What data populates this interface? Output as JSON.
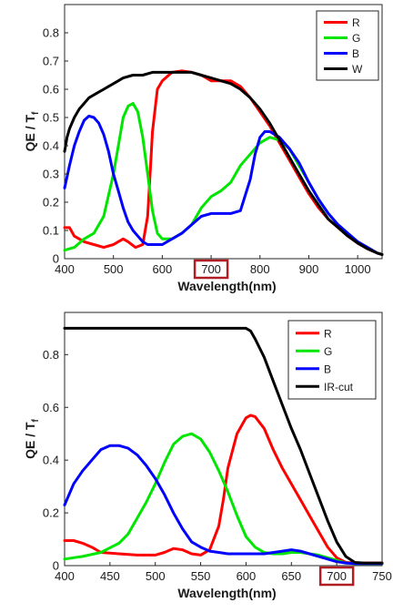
{
  "chart_data": [
    {
      "type": "line",
      "xlabel": "Wavelength(nm)",
      "ylabel": "QE / T",
      "ylabel_sub": "f",
      "xlim": [
        400,
        1050
      ],
      "ylim": [
        0,
        0.9
      ],
      "xticks": [
        400,
        500,
        600,
        700,
        800,
        900,
        1000
      ],
      "yticks": [
        0,
        0.1,
        0.2,
        0.3,
        0.4,
        0.5,
        0.6,
        0.7,
        0.8
      ],
      "xtick_labels": [
        "400",
        "500",
        "600",
        "700",
        "800",
        "900",
        "1000"
      ],
      "ytick_labels": [
        "0",
        "0.1",
        "0.2",
        "0.3",
        "0.4",
        "0.5",
        "0.6",
        "0.7",
        "0.8"
      ],
      "highlighted_tick": "700",
      "highlight_color": "#b01e23",
      "grid": false,
      "legend_position": "top-right",
      "series": [
        {
          "name": "R",
          "color": "#ff0000",
          "x": [
            400,
            410,
            420,
            440,
            460,
            480,
            500,
            520,
            530,
            545,
            560,
            570,
            575,
            580,
            590,
            600,
            620,
            640,
            660,
            680,
            700,
            720,
            740,
            760,
            780,
            800,
            820,
            840,
            860,
            880,
            900,
            920,
            940,
            960,
            980,
            1000,
            1020,
            1040,
            1050
          ],
          "y": [
            0.11,
            0.11,
            0.08,
            0.06,
            0.05,
            0.04,
            0.05,
            0.07,
            0.06,
            0.04,
            0.05,
            0.15,
            0.3,
            0.45,
            0.6,
            0.63,
            0.66,
            0.665,
            0.66,
            0.65,
            0.63,
            0.63,
            0.63,
            0.61,
            0.57,
            0.52,
            0.47,
            0.41,
            0.35,
            0.29,
            0.23,
            0.18,
            0.14,
            0.11,
            0.08,
            0.055,
            0.035,
            0.02,
            0.015
          ]
        },
        {
          "name": "G",
          "color": "#00e600",
          "x": [
            400,
            420,
            440,
            460,
            480,
            500,
            510,
            520,
            530,
            540,
            550,
            560,
            570,
            580,
            590,
            600,
            620,
            640,
            660,
            680,
            700,
            720,
            740,
            760,
            780,
            800,
            820,
            840,
            860,
            880,
            900,
            920,
            940,
            960,
            980,
            1000,
            1020,
            1040,
            1050
          ],
          "y": [
            0.03,
            0.04,
            0.07,
            0.09,
            0.15,
            0.3,
            0.4,
            0.5,
            0.54,
            0.55,
            0.52,
            0.43,
            0.3,
            0.17,
            0.09,
            0.07,
            0.07,
            0.09,
            0.12,
            0.18,
            0.22,
            0.24,
            0.27,
            0.33,
            0.37,
            0.41,
            0.43,
            0.42,
            0.39,
            0.33,
            0.27,
            0.21,
            0.16,
            0.12,
            0.09,
            0.06,
            0.04,
            0.02,
            0.015
          ]
        },
        {
          "name": "B",
          "color": "#0000ff",
          "x": [
            400,
            410,
            420,
            430,
            440,
            450,
            460,
            470,
            480,
            490,
            500,
            510,
            520,
            530,
            540,
            550,
            560,
            570,
            580,
            600,
            620,
            640,
            660,
            680,
            700,
            720,
            740,
            760,
            780,
            790,
            800,
            810,
            820,
            830,
            840,
            860,
            880,
            900,
            920,
            940,
            960,
            980,
            1000,
            1020,
            1040,
            1050
          ],
          "y": [
            0.25,
            0.33,
            0.4,
            0.45,
            0.49,
            0.505,
            0.5,
            0.48,
            0.44,
            0.38,
            0.3,
            0.24,
            0.18,
            0.13,
            0.1,
            0.08,
            0.06,
            0.05,
            0.05,
            0.05,
            0.07,
            0.09,
            0.12,
            0.15,
            0.16,
            0.16,
            0.16,
            0.17,
            0.28,
            0.37,
            0.43,
            0.45,
            0.45,
            0.44,
            0.43,
            0.39,
            0.34,
            0.27,
            0.21,
            0.16,
            0.12,
            0.09,
            0.06,
            0.04,
            0.02,
            0.015
          ]
        },
        {
          "name": "W",
          "color": "#000000",
          "x": [
            400,
            405,
            410,
            420,
            430,
            440,
            450,
            460,
            470,
            480,
            490,
            500,
            520,
            540,
            560,
            580,
            600,
            620,
            640,
            660,
            680,
            700,
            720,
            740,
            760,
            780,
            800,
            820,
            840,
            860,
            880,
            900,
            920,
            940,
            960,
            980,
            1000,
            1020,
            1040,
            1050
          ],
          "y": [
            0.38,
            0.43,
            0.46,
            0.5,
            0.53,
            0.55,
            0.57,
            0.58,
            0.59,
            0.6,
            0.61,
            0.62,
            0.64,
            0.65,
            0.65,
            0.66,
            0.66,
            0.66,
            0.66,
            0.66,
            0.65,
            0.64,
            0.63,
            0.62,
            0.6,
            0.57,
            0.53,
            0.48,
            0.42,
            0.36,
            0.3,
            0.24,
            0.19,
            0.14,
            0.11,
            0.08,
            0.055,
            0.035,
            0.02,
            0.015
          ]
        }
      ]
    },
    {
      "type": "line",
      "xlabel": "Wavelength(nm)",
      "ylabel": "QE / T",
      "ylabel_sub": "f",
      "xlim": [
        400,
        750
      ],
      "ylim": [
        0,
        0.96
      ],
      "xticks": [
        400,
        450,
        500,
        550,
        600,
        650,
        700,
        750
      ],
      "yticks": [
        0,
        0.2,
        0.4,
        0.6,
        0.8
      ],
      "xtick_labels": [
        "400",
        "450",
        "500",
        "550",
        "600",
        "650",
        "700",
        "750"
      ],
      "ytick_labels": [
        "0",
        "0.2",
        "0.4",
        "0.6",
        "0.8"
      ],
      "highlighted_tick": "700",
      "highlight_color": "#b01e23",
      "grid": false,
      "legend_position": "top-right",
      "series": [
        {
          "name": "R",
          "color": "#ff0000",
          "x": [
            400,
            410,
            420,
            430,
            440,
            460,
            480,
            500,
            510,
            520,
            530,
            540,
            550,
            560,
            570,
            575,
            580,
            590,
            600,
            605,
            610,
            620,
            630,
            640,
            650,
            660,
            670,
            680,
            690,
            700,
            710,
            720,
            730,
            740,
            750
          ],
          "y": [
            0.095,
            0.095,
            0.085,
            0.07,
            0.05,
            0.045,
            0.04,
            0.04,
            0.05,
            0.065,
            0.06,
            0.045,
            0.04,
            0.06,
            0.15,
            0.25,
            0.37,
            0.5,
            0.56,
            0.57,
            0.565,
            0.52,
            0.44,
            0.37,
            0.31,
            0.25,
            0.19,
            0.13,
            0.07,
            0.03,
            0.012,
            0.01,
            0.01,
            0.01,
            0.01
          ]
        },
        {
          "name": "G",
          "color": "#00e600",
          "x": [
            400,
            410,
            420,
            440,
            460,
            470,
            480,
            490,
            500,
            510,
            520,
            530,
            540,
            550,
            560,
            570,
            580,
            590,
            600,
            610,
            620,
            630,
            640,
            650,
            660,
            670,
            680,
            690,
            700,
            710,
            720,
            730,
            740,
            750
          ],
          "y": [
            0.025,
            0.03,
            0.035,
            0.05,
            0.085,
            0.12,
            0.18,
            0.24,
            0.31,
            0.39,
            0.46,
            0.49,
            0.5,
            0.48,
            0.43,
            0.36,
            0.28,
            0.19,
            0.11,
            0.07,
            0.05,
            0.045,
            0.045,
            0.05,
            0.05,
            0.045,
            0.04,
            0.03,
            0.02,
            0.01,
            0.008,
            0.008,
            0.008,
            0.008
          ]
        },
        {
          "name": "B",
          "color": "#0000ff",
          "x": [
            400,
            410,
            420,
            430,
            440,
            450,
            460,
            470,
            480,
            490,
            500,
            510,
            520,
            530,
            540,
            550,
            560,
            570,
            580,
            600,
            620,
            640,
            650,
            660,
            670,
            680,
            690,
            700,
            710,
            720,
            730,
            740,
            750
          ],
          "y": [
            0.23,
            0.31,
            0.36,
            0.4,
            0.44,
            0.455,
            0.455,
            0.445,
            0.42,
            0.38,
            0.33,
            0.27,
            0.2,
            0.14,
            0.09,
            0.07,
            0.055,
            0.05,
            0.045,
            0.045,
            0.045,
            0.055,
            0.06,
            0.055,
            0.045,
            0.035,
            0.025,
            0.015,
            0.01,
            0.008,
            0.008,
            0.008,
            0.008
          ]
        },
        {
          "name": "IR-cut",
          "color": "#000000",
          "x": [
            400,
            450,
            500,
            550,
            580,
            600,
            605,
            610,
            620,
            630,
            640,
            650,
            660,
            670,
            680,
            690,
            700,
            710,
            720,
            730,
            740,
            750
          ],
          "y": [
            0.9,
            0.9,
            0.9,
            0.9,
            0.9,
            0.9,
            0.89,
            0.86,
            0.79,
            0.7,
            0.61,
            0.52,
            0.44,
            0.35,
            0.26,
            0.17,
            0.09,
            0.035,
            0.012,
            0.01,
            0.01,
            0.01
          ]
        }
      ]
    }
  ]
}
